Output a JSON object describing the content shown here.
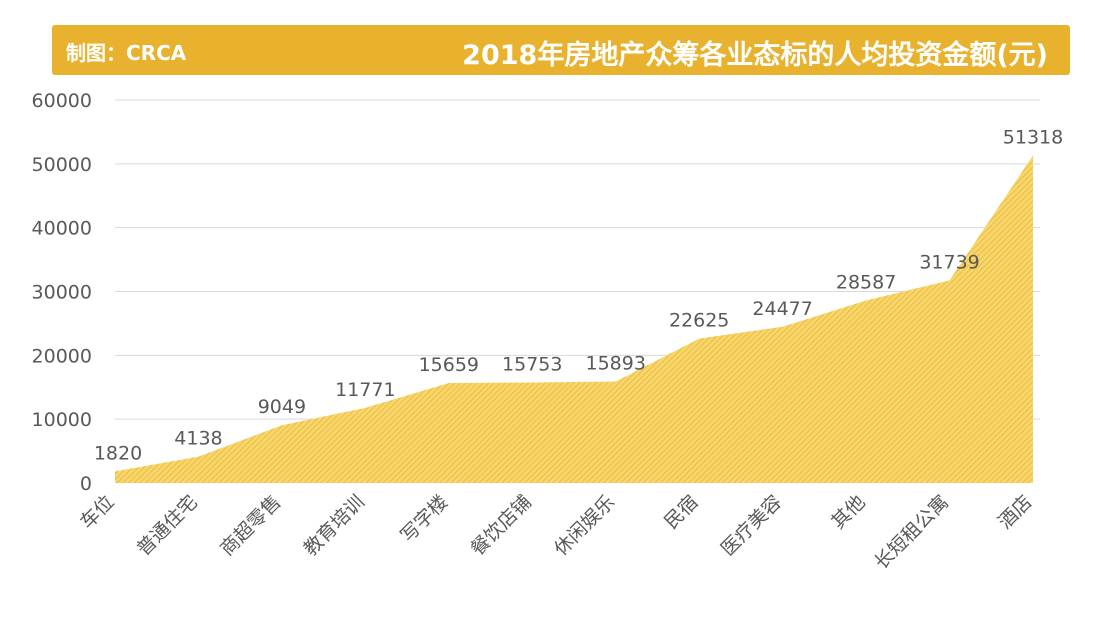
{
  "header": {
    "credit": "制图：CRCA",
    "title": "2018年房地产众筹各业态标的人均投资金额(元)"
  },
  "colors": {
    "banner": "#e8b22e",
    "area_fill": "#f7d66b",
    "area_hatch": "#e8b22e"
  },
  "chart_data": {
    "type": "area",
    "title": "2018年房地产众筹各业态标的人均投资金额(元)",
    "xlabel": "",
    "ylabel": "",
    "categories": [
      "车位",
      "普通住宅",
      "商超零售",
      "教育培训",
      "写字楼",
      "餐饮店铺",
      "休闲娱乐",
      "民宿",
      "医疗美容",
      "其他",
      "长短租公寓",
      "酒店"
    ],
    "values": [
      1820,
      4138,
      9049,
      11771,
      15659,
      15753,
      15893,
      22625,
      24477,
      28587,
      31739,
      51318
    ],
    "ylim": [
      0,
      60000
    ],
    "yticks": [
      "0",
      "10000",
      "20000",
      "30000",
      "40000",
      "50000",
      "60000"
    ],
    "grid": true,
    "legend": "none"
  }
}
